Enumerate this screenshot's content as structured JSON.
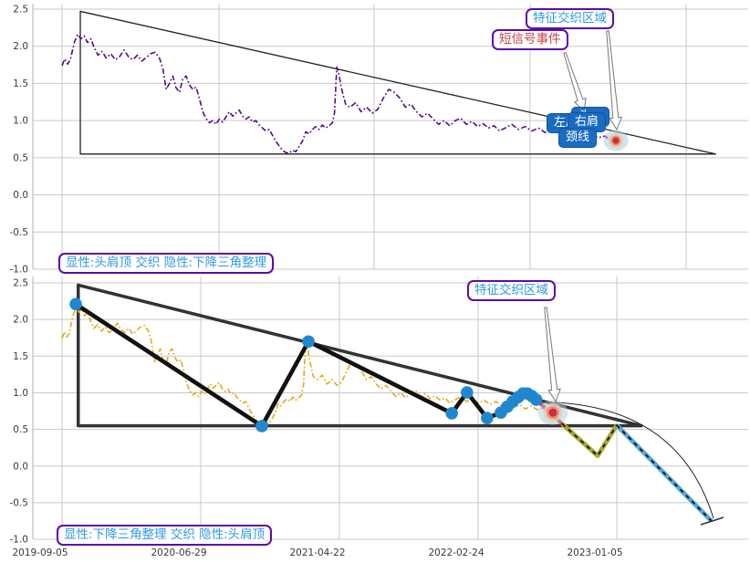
{
  "figure": {
    "bg": "#ffffff",
    "grid_color": "#c9c9c9",
    "spine_color": "#b0b0b0",
    "tick_color": "#3a3a3a"
  },
  "annotations": {
    "feature_zone": "特征交织区域",
    "short_signal": "短信号事件",
    "left_shoulder": "左肩",
    "head": "头",
    "right_shoulder": "右肩",
    "neckline": "颈线",
    "top_pattern": "显性:头肩顶 交织 隐性:下降三角整理",
    "bottom_pattern": "显性:下降三角整理 交织 隐性:头肩顶"
  },
  "chart_data": {
    "type": "line",
    "panels": [
      {
        "name": "head-shoulders-view",
        "ylim": [
          -1.0,
          2.5
        ],
        "yticks": [
          2.5,
          2.0,
          1.5,
          1.0,
          0.5,
          0.0,
          -0.5,
          -1.0
        ],
        "xticks": [],
        "grid": true,
        "series_color": "#550a8a",
        "series_style": "dashdot",
        "pattern_label": "显性:头肩顶 交织 隐性:下降三角整理",
        "annotations": [
          "特征交织区域",
          "短信号事件",
          "左肩",
          "右肩",
          "颈线"
        ]
      },
      {
        "name": "descending-triangle-view",
        "ylim": [
          -1.0,
          2.5
        ],
        "yticks": [
          2.5,
          2.0,
          1.5,
          1.0,
          0.5,
          0.0,
          -0.5,
          -1.0
        ],
        "xticks": [
          "2019-09-05",
          "2020-06-29",
          "2021-04-22",
          "2022-02-24",
          "2023-01-05"
        ],
        "grid": true,
        "series_color": "#e6a817",
        "series_style": "dashdot",
        "pattern_label": "显性:下降三角整理 交织 隐性:头肩顶",
        "annotations": [
          "特征交织区域"
        ]
      }
    ],
    "price_series": [
      [
        0,
        1.74
      ],
      [
        0.005,
        1.83
      ],
      [
        0.01,
        1.76
      ],
      [
        0.015,
        1.82
      ],
      [
        0.022,
        2.05
      ],
      [
        0.028,
        2.16
      ],
      [
        0.034,
        2.1
      ],
      [
        0.04,
        2.14
      ],
      [
        0.046,
        2.05
      ],
      [
        0.052,
        2.1
      ],
      [
        0.058,
        1.98
      ],
      [
        0.065,
        1.88
      ],
      [
        0.072,
        1.93
      ],
      [
        0.08,
        1.84
      ],
      [
        0.088,
        1.9
      ],
      [
        0.096,
        1.82
      ],
      [
        0.104,
        1.86
      ],
      [
        0.112,
        1.95
      ],
      [
        0.12,
        1.86
      ],
      [
        0.128,
        1.82
      ],
      [
        0.136,
        1.88
      ],
      [
        0.144,
        1.8
      ],
      [
        0.152,
        1.85
      ],
      [
        0.16,
        1.9
      ],
      [
        0.168,
        1.92
      ],
      [
        0.176,
        1.84
      ],
      [
        0.182,
        1.7
      ],
      [
        0.188,
        1.42
      ],
      [
        0.194,
        1.5
      ],
      [
        0.2,
        1.6
      ],
      [
        0.206,
        1.44
      ],
      [
        0.212,
        1.38
      ],
      [
        0.218,
        1.56
      ],
      [
        0.224,
        1.6
      ],
      [
        0.23,
        1.48
      ],
      [
        0.236,
        1.42
      ],
      [
        0.242,
        1.45
      ],
      [
        0.248,
        1.3
      ],
      [
        0.254,
        1.12
      ],
      [
        0.26,
        1.03
      ],
      [
        0.266,
        0.97
      ],
      [
        0.272,
        1.0
      ],
      [
        0.278,
        0.95
      ],
      [
        0.284,
        1.02
      ],
      [
        0.29,
        0.98
      ],
      [
        0.296,
        1.05
      ],
      [
        0.302,
        1.12
      ],
      [
        0.308,
        1.06
      ],
      [
        0.314,
        1.1
      ],
      [
        0.32,
        1.14
      ],
      [
        0.326,
        1.06
      ],
      [
        0.332,
        1.02
      ],
      [
        0.338,
        1.05
      ],
      [
        0.344,
        0.98
      ],
      [
        0.35,
        1.0
      ],
      [
        0.356,
        0.94
      ],
      [
        0.362,
        0.9
      ],
      [
        0.368,
        0.86
      ],
      [
        0.374,
        0.88
      ],
      [
        0.38,
        0.8
      ],
      [
        0.386,
        0.72
      ],
      [
        0.392,
        0.66
      ],
      [
        0.398,
        0.6
      ],
      [
        0.404,
        0.57
      ],
      [
        0.41,
        0.56
      ],
      [
        0.416,
        0.6
      ],
      [
        0.422,
        0.58
      ],
      [
        0.428,
        0.65
      ],
      [
        0.434,
        0.72
      ],
      [
        0.44,
        0.85
      ],
      [
        0.446,
        0.82
      ],
      [
        0.452,
        0.88
      ],
      [
        0.458,
        0.92
      ],
      [
        0.464,
        0.88
      ],
      [
        0.47,
        0.94
      ],
      [
        0.476,
        0.9
      ],
      [
        0.482,
        0.93
      ],
      [
        0.488,
        0.97
      ],
      [
        0.492,
        1.1
      ],
      [
        0.496,
        1.72
      ],
      [
        0.5,
        1.62
      ],
      [
        0.504,
        1.45
      ],
      [
        0.512,
        1.22
      ],
      [
        0.52,
        1.18
      ],
      [
        0.53,
        1.24
      ],
      [
        0.54,
        1.12
      ],
      [
        0.55,
        1.18
      ],
      [
        0.56,
        1.1
      ],
      [
        0.57,
        1.15
      ],
      [
        0.58,
        1.3
      ],
      [
        0.59,
        1.42
      ],
      [
        0.6,
        1.38
      ],
      [
        0.61,
        1.3
      ],
      [
        0.62,
        1.18
      ],
      [
        0.63,
        1.22
      ],
      [
        0.64,
        1.12
      ],
      [
        0.65,
        1.05
      ],
      [
        0.66,
        1.1
      ],
      [
        0.67,
        1.02
      ],
      [
        0.68,
        0.95
      ],
      [
        0.69,
        1.0
      ],
      [
        0.7,
        0.93
      ],
      [
        0.71,
        1.0
      ],
      [
        0.72,
        1.03
      ],
      [
        0.73,
        0.95
      ],
      [
        0.74,
        0.99
      ],
      [
        0.75,
        0.92
      ],
      [
        0.76,
        0.96
      ],
      [
        0.77,
        0.9
      ],
      [
        0.78,
        0.93
      ],
      [
        0.79,
        0.86
      ],
      [
        0.8,
        0.9
      ],
      [
        0.812,
        0.95
      ],
      [
        0.824,
        0.88
      ],
      [
        0.836,
        0.92
      ],
      [
        0.848,
        0.86
      ],
      [
        0.86,
        0.9
      ],
      [
        0.872,
        0.84
      ],
      [
        0.884,
        0.88
      ],
      [
        0.896,
        0.82
      ],
      [
        0.908,
        0.86
      ],
      [
        0.92,
        0.8
      ],
      [
        0.932,
        0.84
      ],
      [
        0.944,
        0.78
      ],
      [
        0.956,
        0.82
      ],
      [
        0.968,
        0.77
      ],
      [
        0.98,
        0.79
      ],
      [
        0.99,
        0.74
      ],
      [
        1.0,
        0.73
      ]
    ],
    "triangle": {
      "top_left": [
        0.033,
        2.47
      ],
      "right_apex": [
        1.18,
        0.55
      ],
      "base_value": 0.55
    },
    "zigzag": [
      [
        0.028,
        2.21
      ],
      [
        0.407,
        0.545
      ],
      [
        0.502,
        1.7
      ],
      [
        0.794,
        0.72
      ],
      [
        0.825,
        1.005
      ],
      [
        0.866,
        0.655
      ],
      [
        0.894,
        0.73
      ],
      [
        0.907,
        0.81
      ],
      [
        0.918,
        0.88
      ],
      [
        0.929,
        0.94
      ],
      [
        0.939,
        0.99
      ],
      [
        0.948,
        0.99
      ],
      [
        0.957,
        0.955
      ],
      [
        0.966,
        0.905
      ]
    ],
    "signal_point": {
      "t": 1.0,
      "v": 0.73
    },
    "signal_segment": [
      [
        0.966,
        0.905
      ],
      [
        1.019,
        0.575
      ]
    ],
    "forecast_olive": [
      [
        1.019,
        0.575
      ],
      [
        1.091,
        0.14
      ],
      [
        1.13,
        0.557
      ]
    ],
    "forecast_blue": [
      [
        1.13,
        0.557
      ],
      [
        1.323,
        -0.75
      ]
    ],
    "colors": {
      "zigzag": "#111111",
      "marker": "#1e88cf",
      "triangle_top": "#222222",
      "triangle_bottom": "#333333",
      "signal_red": "#cc3355",
      "olive": "#a8a832",
      "forecast_blue": "#55aadd",
      "halo_blue": "#a8cde8",
      "halo_peach": "#efc9a2",
      "halo_pink": "#e88585",
      "dot_red": "#c93333"
    }
  }
}
